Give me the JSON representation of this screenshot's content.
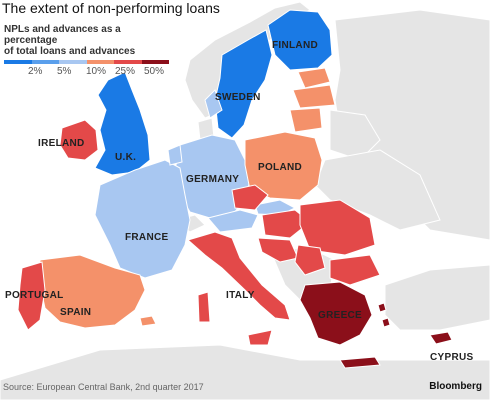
{
  "title": "The extent of non-performing loans",
  "legend": {
    "title_line1": "NPLs and advances as a percentage",
    "title_line2": "of total loans and advances",
    "ticks": [
      "2%",
      "5%",
      "10%",
      "25%",
      "50%"
    ],
    "colors": [
      "#1a7ae5",
      "#5a9fec",
      "#a8c7f1",
      "#f4916a",
      "#e34949",
      "#8b0f1a"
    ]
  },
  "country_labels": {
    "finland": "FINLAND",
    "sweden": "SWEDEN",
    "ireland": "IRELAND",
    "uk": "U.K.",
    "germany": "GERMANY",
    "poland": "POLAND",
    "france": "FRANCE",
    "portugal": "PORTUGAL",
    "spain": "SPAIN",
    "italy": "ITALY",
    "greece": "GREECE",
    "cyprus": "CYPRUS"
  },
  "colors": {
    "land_gray": "#e5e5e5",
    "border": "#ffffff",
    "tier_2": "#1a7ae5",
    "tier_5": "#a8c7f1",
    "tier_10": "#f4916a",
    "tier_25": "#e34949",
    "tier_50": "#8b0f1a"
  },
  "source": "Source: European Central Bank, 2nd quarter 2017",
  "brand": "Bloomberg"
}
